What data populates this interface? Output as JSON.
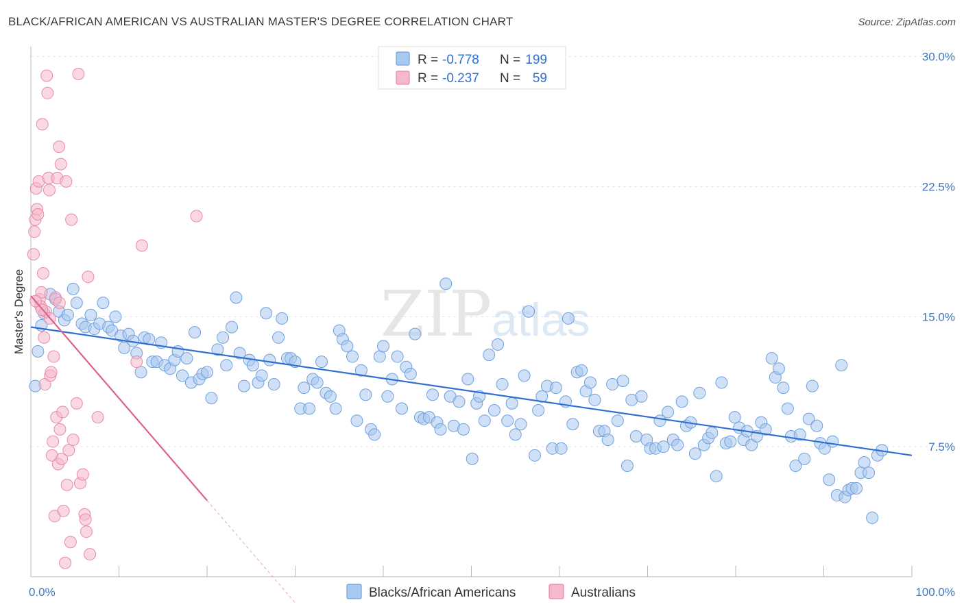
{
  "header": {
    "title": "BLACK/AFRICAN AMERICAN VS AUSTRALIAN MASTER'S DEGREE CORRELATION CHART",
    "source": "Source: ZipAtlas.com"
  },
  "watermark": {
    "zip": "ZIP",
    "atlas": "atlas"
  },
  "legend": {
    "rows": [
      {
        "r_label": "R =",
        "r_value": "-0.778",
        "n_label": "N =",
        "n_value": "199",
        "color": "#a9c8f0"
      },
      {
        "r_label": "R =",
        "r_value": "-0.237",
        "n_label": "N =",
        "n_value": "59",
        "color": "#f6b8cb"
      }
    ]
  },
  "bottom_legend": {
    "items": [
      {
        "label": "Blacks/African Americans",
        "color": "#a9c8f0"
      },
      {
        "label": "Australians",
        "color": "#f6b8cb"
      }
    ]
  },
  "chart_data": {
    "type": "scatter",
    "title": "BLACK/AFRICAN AMERICAN VS AUSTRALIAN MASTER'S DEGREE CORRELATION CHART",
    "xlabel": "",
    "ylabel": "Master's Degree",
    "xlim": [
      0,
      100
    ],
    "ylim": [
      0,
      30.5
    ],
    "x_tick_labels": [
      {
        "value": 0,
        "label": "0.0%"
      },
      {
        "value": 100,
        "label": "100.0%"
      }
    ],
    "y_ticks": [
      {
        "value": 7.5,
        "label": "7.5%"
      },
      {
        "value": 15.0,
        "label": "15.0%"
      },
      {
        "value": 22.5,
        "label": "22.5%"
      },
      {
        "value": 30.0,
        "label": "30.0%"
      }
    ],
    "grid": true,
    "legend_position": "top-center",
    "colors": {
      "blue_fill": "#a9c8f0",
      "blue_stroke": "#6fa0dc",
      "blue_line": "#2f6fcf",
      "pink_fill": "#f6b8cb",
      "pink_stroke": "#e88aa6",
      "pink_line": "#e0608c",
      "axis_text": "#3b78c4"
    },
    "series": [
      {
        "name": "Blacks/African Americans",
        "color": "#a9c8f0",
        "trendline": {
          "x": [
            0,
            100
          ],
          "y": [
            14.4,
            7.0
          ]
        },
        "points": [
          [
            0.5,
            11.0
          ],
          [
            0.8,
            13.0
          ],
          [
            1.2,
            14.5
          ],
          [
            1.5,
            15.2
          ],
          [
            2.2,
            16.3
          ],
          [
            2.8,
            16.0
          ],
          [
            3.2,
            15.3
          ],
          [
            3.8,
            14.8
          ],
          [
            4.2,
            15.1
          ],
          [
            4.8,
            16.6
          ],
          [
            5.2,
            15.8
          ],
          [
            5.8,
            14.6
          ],
          [
            6.2,
            14.4
          ],
          [
            6.8,
            15.1
          ],
          [
            7.2,
            14.3
          ],
          [
            7.8,
            14.6
          ],
          [
            8.2,
            15.8
          ],
          [
            8.8,
            14.4
          ],
          [
            9.2,
            14.2
          ],
          [
            9.6,
            15.0
          ],
          [
            10.2,
            13.9
          ],
          [
            10.6,
            13.2
          ],
          [
            11.1,
            14.0
          ],
          [
            11.6,
            13.6
          ],
          [
            12.0,
            12.9
          ],
          [
            12.5,
            11.8
          ],
          [
            12.9,
            13.8
          ],
          [
            13.4,
            13.7
          ],
          [
            13.8,
            12.4
          ],
          [
            14.3,
            12.4
          ],
          [
            14.8,
            13.5
          ],
          [
            15.2,
            12.2
          ],
          [
            15.8,
            12.0
          ],
          [
            16.3,
            12.5
          ],
          [
            16.7,
            13.0
          ],
          [
            17.2,
            11.6
          ],
          [
            17.7,
            12.6
          ],
          [
            18.2,
            11.2
          ],
          [
            18.6,
            14.1
          ],
          [
            19.1,
            11.4
          ],
          [
            19.5,
            11.7
          ],
          [
            20.0,
            11.8
          ],
          [
            20.5,
            10.3
          ],
          [
            21.2,
            13.1
          ],
          [
            21.8,
            13.8
          ],
          [
            22.2,
            12.2
          ],
          [
            22.8,
            14.4
          ],
          [
            23.3,
            16.1
          ],
          [
            23.7,
            12.9
          ],
          [
            24.2,
            11.0
          ],
          [
            24.8,
            12.5
          ],
          [
            25.2,
            12.2
          ],
          [
            25.8,
            11.2
          ],
          [
            26.2,
            11.6
          ],
          [
            26.7,
            15.2
          ],
          [
            27.1,
            12.5
          ],
          [
            27.6,
            11.1
          ],
          [
            28.1,
            13.8
          ],
          [
            28.5,
            14.9
          ],
          [
            29.1,
            12.6
          ],
          [
            29.5,
            12.6
          ],
          [
            30.0,
            12.4
          ],
          [
            30.6,
            9.7
          ],
          [
            31.0,
            10.9
          ],
          [
            31.6,
            9.7
          ],
          [
            32.0,
            11.4
          ],
          [
            32.5,
            11.2
          ],
          [
            33.0,
            12.4
          ],
          [
            33.5,
            10.6
          ],
          [
            34.0,
            10.4
          ],
          [
            34.6,
            9.7
          ],
          [
            35.0,
            14.2
          ],
          [
            35.4,
            13.7
          ],
          [
            35.9,
            13.3
          ],
          [
            36.5,
            12.7
          ],
          [
            37.0,
            9.0
          ],
          [
            37.5,
            11.9
          ],
          [
            38.0,
            10.5
          ],
          [
            38.6,
            8.5
          ],
          [
            39.0,
            8.2
          ],
          [
            39.6,
            12.7
          ],
          [
            40.0,
            13.3
          ],
          [
            40.5,
            10.4
          ],
          [
            41.0,
            11.4
          ],
          [
            41.6,
            12.7
          ],
          [
            42.1,
            9.7
          ],
          [
            42.6,
            12.1
          ],
          [
            43.1,
            11.7
          ],
          [
            43.6,
            14.0
          ],
          [
            44.2,
            9.2
          ],
          [
            44.6,
            9.1
          ],
          [
            45.2,
            9.2
          ],
          [
            45.6,
            10.5
          ],
          [
            46.1,
            8.9
          ],
          [
            46.5,
            8.5
          ],
          [
            47.1,
            16.9
          ],
          [
            47.6,
            10.4
          ],
          [
            48.0,
            8.7
          ],
          [
            48.6,
            10.1
          ],
          [
            49.1,
            8.5
          ],
          [
            49.6,
            11.4
          ],
          [
            50.1,
            6.8
          ],
          [
            50.6,
            10.0
          ],
          [
            50.9,
            10.4
          ],
          [
            51.5,
            9.0
          ],
          [
            52.0,
            12.8
          ],
          [
            52.6,
            9.6
          ],
          [
            53.0,
            13.4
          ],
          [
            53.5,
            11.1
          ],
          [
            54.1,
            9.0
          ],
          [
            54.6,
            10.0
          ],
          [
            55.0,
            8.2
          ],
          [
            55.6,
            8.8
          ],
          [
            56.0,
            11.6
          ],
          [
            56.5,
            15.3
          ],
          [
            57.2,
            7.0
          ],
          [
            57.6,
            9.6
          ],
          [
            58.0,
            10.4
          ],
          [
            58.6,
            11.0
          ],
          [
            59.2,
            7.4
          ],
          [
            59.6,
            10.9
          ],
          [
            60.2,
            7.4
          ],
          [
            60.7,
            10.1
          ],
          [
            61.0,
            14.9
          ],
          [
            61.5,
            8.8
          ],
          [
            62.0,
            11.8
          ],
          [
            62.5,
            11.9
          ],
          [
            63.0,
            10.7
          ],
          [
            63.5,
            11.2
          ],
          [
            64.0,
            10.2
          ],
          [
            64.5,
            8.4
          ],
          [
            65.1,
            8.4
          ],
          [
            65.5,
            7.9
          ],
          [
            66.0,
            11.1
          ],
          [
            66.6,
            9.0
          ],
          [
            67.2,
            11.3
          ],
          [
            67.7,
            6.4
          ],
          [
            68.2,
            10.2
          ],
          [
            68.7,
            8.1
          ],
          [
            69.3,
            10.4
          ],
          [
            69.9,
            7.9
          ],
          [
            70.3,
            7.4
          ],
          [
            70.9,
            7.4
          ],
          [
            71.4,
            9.0
          ],
          [
            71.8,
            7.5
          ],
          [
            72.3,
            9.5
          ],
          [
            72.9,
            7.9
          ],
          [
            73.4,
            7.6
          ],
          [
            73.9,
            10.1
          ],
          [
            74.4,
            8.7
          ],
          [
            74.9,
            8.9
          ],
          [
            75.4,
            7.1
          ],
          [
            75.9,
            10.6
          ],
          [
            76.4,
            7.6
          ],
          [
            76.9,
            8.0
          ],
          [
            77.3,
            8.3
          ],
          [
            77.8,
            5.8
          ],
          [
            78.4,
            11.2
          ],
          [
            78.9,
            7.7
          ],
          [
            79.4,
            7.8
          ],
          [
            79.9,
            9.2
          ],
          [
            80.4,
            8.6
          ],
          [
            80.9,
            7.9
          ],
          [
            81.3,
            8.4
          ],
          [
            81.8,
            7.6
          ],
          [
            82.4,
            8.1
          ],
          [
            82.9,
            8.9
          ],
          [
            83.4,
            8.5
          ],
          [
            84.1,
            12.6
          ],
          [
            84.5,
            11.5
          ],
          [
            84.9,
            12.0
          ],
          [
            85.4,
            10.9
          ],
          [
            85.9,
            9.7
          ],
          [
            86.3,
            8.1
          ],
          [
            86.8,
            6.4
          ],
          [
            87.3,
            8.2
          ],
          [
            87.8,
            6.8
          ],
          [
            88.3,
            9.1
          ],
          [
            88.7,
            11.0
          ],
          [
            89.2,
            8.7
          ],
          [
            89.6,
            7.7
          ],
          [
            90.1,
            7.4
          ],
          [
            90.6,
            5.6
          ],
          [
            91.0,
            7.8
          ],
          [
            91.5,
            4.7
          ],
          [
            92.0,
            12.2
          ],
          [
            92.4,
            4.6
          ],
          [
            92.8,
            5.0
          ],
          [
            93.2,
            5.1
          ],
          [
            93.7,
            5.1
          ],
          [
            94.2,
            6.0
          ],
          [
            94.6,
            6.6
          ],
          [
            95.1,
            6.0
          ],
          [
            95.5,
            3.4
          ],
          [
            96.1,
            7.0
          ],
          [
            96.6,
            7.3
          ]
        ]
      },
      {
        "name": "Australians",
        "color": "#f6b8cb",
        "trendline": {
          "x": [
            0,
            20
          ],
          "y": [
            16.2,
            4.4
          ]
        },
        "trendline_dashed": {
          "x": [
            20,
            30
          ],
          "y": [
            4.4,
            -1.5
          ]
        },
        "points": [
          [
            0.3,
            18.6
          ],
          [
            0.4,
            19.9
          ],
          [
            0.5,
            20.6
          ],
          [
            0.6,
            22.4
          ],
          [
            0.7,
            21.2
          ],
          [
            0.8,
            20.9
          ],
          [
            0.9,
            22.8
          ],
          [
            1.0,
            16.0
          ],
          [
            1.1,
            15.6
          ],
          [
            1.2,
            16.4
          ],
          [
            1.3,
            26.1
          ],
          [
            1.4,
            17.5
          ],
          [
            1.5,
            13.8
          ],
          [
            1.6,
            11.1
          ],
          [
            1.7,
            15.3
          ],
          [
            1.8,
            28.9
          ],
          [
            1.9,
            27.9
          ],
          [
            2.0,
            23.0
          ],
          [
            2.1,
            22.3
          ],
          [
            2.2,
            11.6
          ],
          [
            2.3,
            11.8
          ],
          [
            2.4,
            7.0
          ],
          [
            2.5,
            7.8
          ],
          [
            2.6,
            12.7
          ],
          [
            2.7,
            3.5
          ],
          [
            2.8,
            16.1
          ],
          [
            2.9,
            9.2
          ],
          [
            3.0,
            23.0
          ],
          [
            3.1,
            6.5
          ],
          [
            3.2,
            24.8
          ],
          [
            3.3,
            8.5
          ],
          [
            3.4,
            23.8
          ],
          [
            3.5,
            6.8
          ],
          [
            3.6,
            9.5
          ],
          [
            3.7,
            3.8
          ],
          [
            3.9,
            0.8
          ],
          [
            4.0,
            22.8
          ],
          [
            4.1,
            5.3
          ],
          [
            4.3,
            7.3
          ],
          [
            4.5,
            2.0
          ],
          [
            4.6,
            20.6
          ],
          [
            4.8,
            7.9
          ],
          [
            5.2,
            10.0
          ],
          [
            5.4,
            29.0
          ],
          [
            5.6,
            5.4
          ],
          [
            5.9,
            5.9
          ],
          [
            6.1,
            3.6
          ],
          [
            6.2,
            3.3
          ],
          [
            6.3,
            2.6
          ],
          [
            6.5,
            17.3
          ],
          [
            6.7,
            1.3
          ],
          [
            7.6,
            9.2
          ],
          [
            12.0,
            12.4
          ],
          [
            12.6,
            19.1
          ],
          [
            18.8,
            20.8
          ],
          [
            1.25,
            15.4
          ],
          [
            2.15,
            14.9
          ],
          [
            0.55,
            15.9
          ],
          [
            3.25,
            15.8
          ]
        ]
      }
    ]
  }
}
